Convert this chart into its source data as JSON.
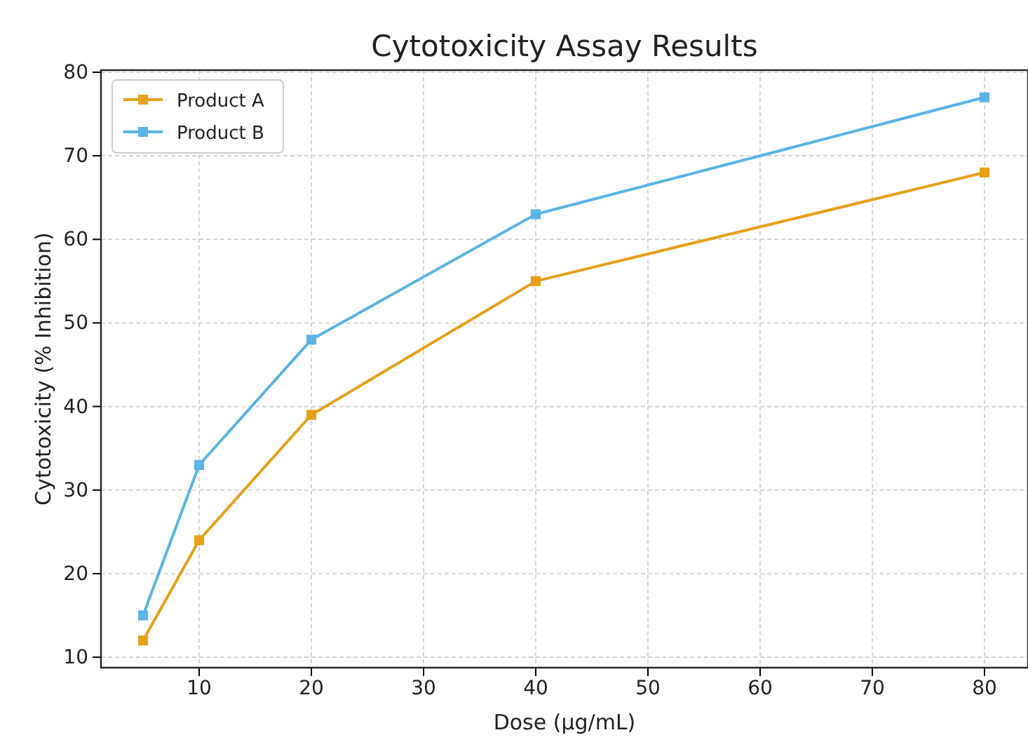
{
  "chart_data": {
    "type": "line",
    "title": "Cytotoxicity Assay Results",
    "xlabel": "Dose (µg/mL)",
    "ylabel": "Cytotoxicity (% Inhibition)",
    "x": [
      5,
      10,
      20,
      40,
      80
    ],
    "series": [
      {
        "name": "Product A",
        "color": "#e6a11a",
        "values": [
          12,
          24,
          39,
          55,
          68
        ]
      },
      {
        "name": "Product B",
        "color": "#5ab4e5",
        "values": [
          15,
          33,
          48,
          63,
          77
        ]
      }
    ],
    "xlim": [
      1.25,
      83.75
    ],
    "xticks": [
      10,
      20,
      30,
      40,
      50,
      60,
      70,
      80
    ],
    "ylim": [
      8.75,
      80.25
    ],
    "yticks": [
      10,
      20,
      30,
      40,
      50,
      60,
      70,
      80
    ],
    "grid": true,
    "legend": "top left",
    "marker": "square",
    "line_style": "solid"
  }
}
